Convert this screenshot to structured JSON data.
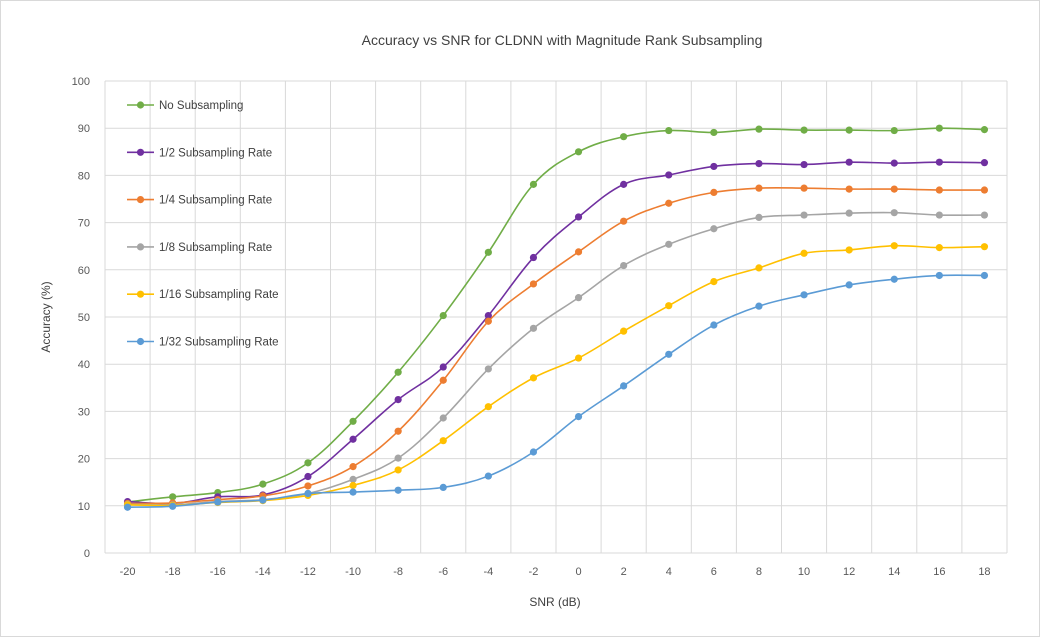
{
  "chart_data": {
    "type": "line",
    "title": "Accuracy vs SNR for CLDNN with Magnitude Rank Subsampling",
    "xlabel": "SNR (dB)",
    "ylabel": "Accuracy (%)",
    "x": [
      -20,
      -18,
      -16,
      -14,
      -12,
      -10,
      -8,
      -6,
      -4,
      -2,
      0,
      2,
      4,
      6,
      8,
      10,
      12,
      14,
      16,
      18
    ],
    "xlim": [
      -20,
      18
    ],
    "ylim": [
      0,
      100
    ],
    "yticks": [
      0,
      10,
      20,
      30,
      40,
      50,
      60,
      70,
      80,
      90,
      100
    ],
    "xticks": [
      "-20",
      "-18",
      "-16",
      "-14",
      "-12",
      "-10",
      "-8",
      "-6",
      "-4",
      "-2",
      "0",
      "2",
      "4",
      "6",
      "8",
      "10",
      "12",
      "14",
      "16",
      "18"
    ],
    "grid": true,
    "legend_position": "top-left",
    "series": [
      {
        "name": "No Subsampling",
        "color": "#70ad47",
        "values": [
          10.8,
          11.9,
          12.8,
          14.6,
          19.1,
          27.9,
          38.3,
          50.3,
          63.7,
          78.1,
          85.0,
          88.2,
          89.5,
          89.1,
          89.8,
          89.6,
          89.6,
          89.5,
          90.0,
          89.7
        ]
      },
      {
        "name": "1/2 Subsampling Rate",
        "color": "#7030a0",
        "values": [
          10.9,
          10.5,
          11.9,
          12.3,
          16.2,
          24.1,
          32.5,
          39.4,
          50.3,
          62.6,
          71.2,
          78.1,
          80.1,
          81.9,
          82.5,
          82.3,
          82.8,
          82.6,
          82.8,
          82.7
        ]
      },
      {
        "name": "1/4 Subsampling Rate",
        "color": "#ed7d31",
        "values": [
          10.5,
          10.6,
          11.3,
          12.1,
          14.2,
          18.3,
          25.8,
          36.6,
          49.1,
          57.0,
          63.8,
          70.3,
          74.1,
          76.4,
          77.3,
          77.3,
          77.1,
          77.1,
          76.9,
          76.9
        ]
      },
      {
        "name": "1/8 Subsampling Rate",
        "color": "#a5a5a5",
        "values": [
          10.3,
          10.2,
          10.9,
          11.3,
          12.6,
          15.6,
          20.1,
          28.6,
          39.0,
          47.6,
          54.1,
          60.9,
          65.4,
          68.7,
          71.1,
          71.6,
          72.0,
          72.1,
          71.6,
          71.6
        ]
      },
      {
        "name": "1/16 Subsampling Rate",
        "color": "#ffc000",
        "values": [
          10.2,
          10.1,
          10.7,
          11.1,
          12.2,
          14.3,
          17.6,
          23.8,
          31.0,
          37.1,
          41.3,
          47.0,
          52.4,
          57.5,
          60.4,
          63.5,
          64.2,
          65.1,
          64.7,
          64.9
        ]
      },
      {
        "name": "1/32 Subsampling Rate",
        "color": "#5b9bd5",
        "values": [
          9.7,
          9.9,
          10.8,
          11.2,
          12.6,
          12.9,
          13.3,
          13.9,
          16.3,
          21.4,
          28.9,
          35.4,
          42.1,
          48.3,
          52.3,
          54.7,
          56.8,
          58.0,
          58.8,
          58.8
        ]
      }
    ]
  }
}
